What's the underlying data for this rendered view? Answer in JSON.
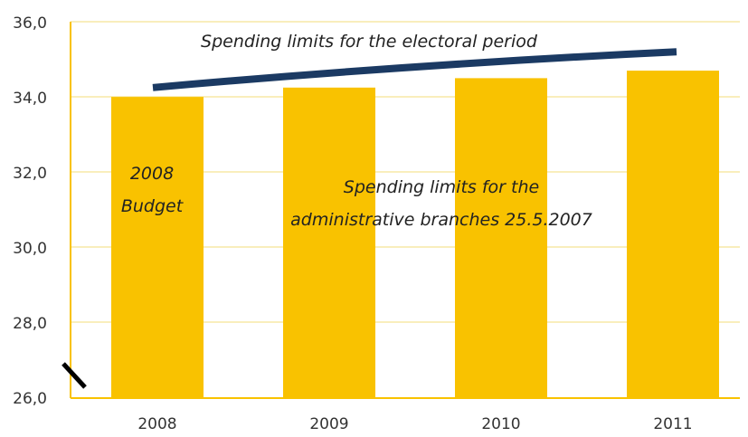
{
  "chart_data": {
    "type": "bar",
    "categories": [
      "2008",
      "2009",
      "2010",
      "2011"
    ],
    "values": [
      34.0,
      34.25,
      34.5,
      34.7
    ],
    "ylim": [
      26.0,
      36.0
    ],
    "yticks": [
      "26,0",
      "28,0",
      "30,0",
      "32,0",
      "34,0",
      "36,0"
    ],
    "grid": true,
    "bar_color": "#f9c200",
    "line_color": "#1b3a63",
    "axis_break": true,
    "limit_line": {
      "label": "Spending limits for the electoral period",
      "x": [
        "2008",
        "2011"
      ],
      "y": [
        34.25,
        35.2
      ]
    },
    "annotations": {
      "budget_line1": "2008",
      "budget_line2": "Budget",
      "admin_line1": "Spending limits for the",
      "admin_line2": "administrative branches 25.5.2007"
    }
  }
}
